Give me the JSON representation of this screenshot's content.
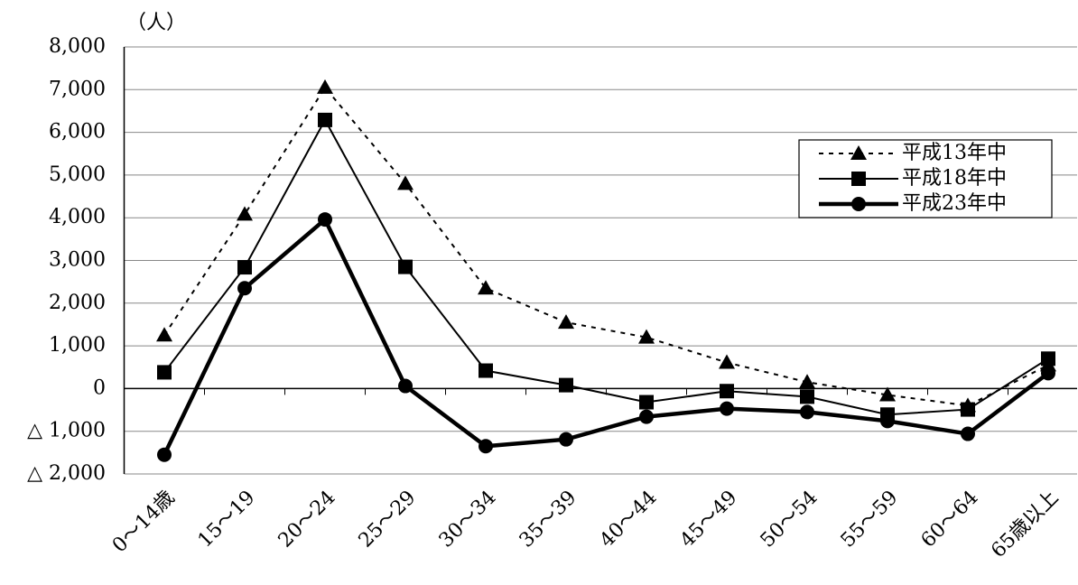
{
  "chart_data": {
    "type": "line",
    "unit_label": "（人）",
    "categories": [
      "0～14歳",
      "15～19",
      "20～24",
      "25～29",
      "30～34",
      "35～39",
      "40～44",
      "45～49",
      "50～54",
      "55～59",
      "60～64",
      "65歳以上"
    ],
    "series": [
      {
        "name": "平成13年中",
        "color": "#000000",
        "marker": "triangle",
        "linestyle": "dotted",
        "linewidth": 2,
        "values": [
          1250,
          4080,
          7050,
          4800,
          2350,
          1550,
          1200,
          610,
          150,
          -150,
          -400,
          550
        ]
      },
      {
        "name": "平成18年中",
        "color": "#000000",
        "marker": "square",
        "linestyle": "solid",
        "linewidth": 2,
        "values": [
          380,
          2840,
          6290,
          2850,
          420,
          80,
          -320,
          -60,
          -190,
          -610,
          -490,
          700
        ]
      },
      {
        "name": "平成23年中",
        "color": "#000000",
        "marker": "circle",
        "linestyle": "solid",
        "linewidth": 4.5,
        "values": [
          -1550,
          2350,
          3960,
          60,
          -1350,
          -1190,
          -660,
          -470,
          -550,
          -760,
          -1060,
          360
        ]
      }
    ],
    "ylim": [
      -2000,
      8000
    ],
    "yticks": [
      {
        "value": -2000,
        "label": "△ 2,000"
      },
      {
        "value": -1000,
        "label": "△ 1,000"
      },
      0,
      {
        "value": 1000,
        "label": "1,000"
      },
      {
        "value": 2000,
        "label": "2,000"
      },
      {
        "value": 3000,
        "label": "3,000"
      },
      {
        "value": 4000,
        "label": "4,000"
      },
      {
        "value": 5000,
        "label": "5,000"
      },
      {
        "value": 6000,
        "label": "6,000"
      },
      {
        "value": 7000,
        "label": "7,000"
      },
      {
        "value": 8000,
        "label": "8,000"
      }
    ],
    "grid": true,
    "legend": "upper right"
  }
}
